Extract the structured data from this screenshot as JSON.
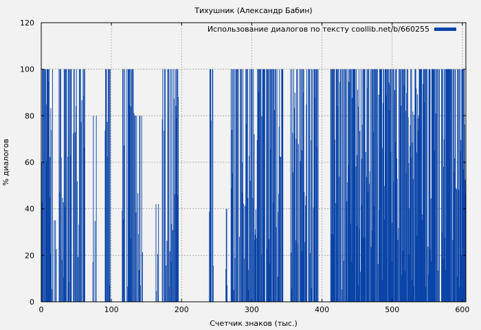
{
  "chart_data": {
    "type": "bar",
    "title": "Тихушник (Александр Бабин)",
    "xlabel": "Счетчик знаков (тыс.)",
    "ylabel": "% диалогов",
    "xlim": [
      0,
      605
    ],
    "ylim": [
      0,
      120
    ],
    "xticks": [
      0,
      100,
      200,
      300,
      400,
      500,
      600
    ],
    "yticks": [
      0,
      20,
      40,
      60,
      80,
      100,
      120
    ],
    "grid": true,
    "legend_position": "top-right",
    "series": [
      {
        "name": "Использование диалогов по тексту coollib.net/b/660255",
        "color": "#0a44a8",
        "segments": [
          {
            "x": [
              0,
              16
            ],
            "level": 100,
            "density": 0.85
          },
          {
            "x": [
              18,
              22
            ],
            "level": 35,
            "density": 0.5
          },
          {
            "x": [
              25,
              62
            ],
            "level": 100,
            "density": 0.7
          },
          {
            "x": [
              72,
              80
            ],
            "level": 80,
            "density": 0.45
          },
          {
            "x": [
              90,
              98
            ],
            "level": 100,
            "density": 0.8
          },
          {
            "x": [
              115,
              132
            ],
            "level": 100,
            "density": 0.6
          },
          {
            "x": [
              133,
              145
            ],
            "level": 80,
            "density": 0.45
          },
          {
            "x": [
              163,
              167
            ],
            "level": 42,
            "density": 0.5
          },
          {
            "x": [
              172,
              195
            ],
            "level": 100,
            "density": 0.75
          },
          {
            "x": [
              238,
              245
            ],
            "level": 100,
            "density": 0.6
          },
          {
            "x": [
              262,
              266
            ],
            "level": 40,
            "density": 0.5
          },
          {
            "x": [
              270,
              345
            ],
            "level": 100,
            "density": 0.75
          },
          {
            "x": [
              355,
              395
            ],
            "level": 100,
            "density": 0.8
          },
          {
            "x": [
              412,
              605
            ],
            "level": 100,
            "density": 0.9
          }
        ]
      }
    ]
  }
}
